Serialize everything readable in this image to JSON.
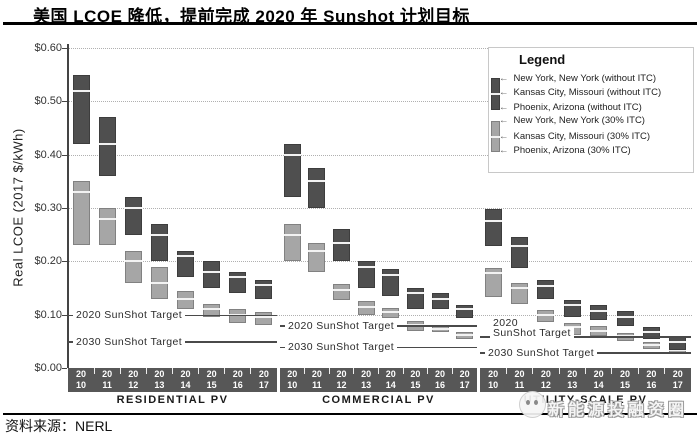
{
  "header": {
    "title": "美国 LCOE 降低，提前完成 2020 年 Sunshot 计划目标"
  },
  "footer": {
    "source": "资料来源：NERL",
    "watermark": "新能源投融资圈"
  },
  "legend": {
    "title": "Legend",
    "items": [
      "New York, New York (without ITC)",
      "Kansas City, Missouri (without ITC)",
      "Phoenix, Arizona (without ITC)",
      "New York, New York (30% ITC)",
      "Kansas City, Missouri (30% ITC)",
      "Phoenix, Arizona (30% ITC)"
    ]
  },
  "chart_data": {
    "type": "bar",
    "subtype": "floating-range-bars",
    "title": "美国 LCOE 降低，提前完成 2020 年 Sunshot 计划目标",
    "ylabel": "Real LCOE (2017 $/kWh)",
    "ylim": [
      0,
      0.6
    ],
    "ytick_step": 0.1,
    "ytick_labels": [
      "$0.00",
      "$0.10",
      "$0.20",
      "$0.30",
      "$0.40",
      "$0.50",
      "$0.60"
    ],
    "grid": "dotted horizontal",
    "legend_position": "top-right",
    "years": [
      "2010",
      "2011",
      "2012",
      "2013",
      "2014",
      "2015",
      "2016",
      "2017"
    ],
    "range_semantics": {
      "bar_top": "New York, New York (high)",
      "bar_mid_line": "Kansas City, Missouri",
      "bar_bottom": "Phoenix, Arizona (low)"
    },
    "colors": {
      "without_itc": "#4f4f4f",
      "itc30": "#a6a6a6",
      "mid_line": "#f2f2f2",
      "axis_band": "#575757"
    },
    "groups": [
      {
        "label": "RESIDENTIAL PV",
        "targets": [
          {
            "label": "2020 SunShot Target",
            "value": 0.1
          },
          {
            "label": "2030 SunShot Target",
            "value": 0.05
          }
        ],
        "without_itc": [
          [
            0.42,
            0.52,
            0.55
          ],
          [
            0.36,
            0.42,
            0.47
          ],
          [
            0.25,
            0.3,
            0.32
          ],
          [
            0.2,
            0.25,
            0.27
          ],
          [
            0.17,
            0.21,
            0.22
          ],
          [
            0.15,
            0.18,
            0.2
          ],
          [
            0.14,
            0.17,
            0.18
          ],
          [
            0.13,
            0.155,
            0.165
          ]
        ],
        "itc30": [
          [
            0.23,
            0.33,
            0.35
          ],
          [
            0.23,
            0.28,
            0.3
          ],
          [
            0.16,
            0.2,
            0.22
          ],
          [
            0.13,
            0.16,
            0.19
          ],
          [
            0.11,
            0.13,
            0.145
          ],
          [
            0.095,
            0.11,
            0.12
          ],
          [
            0.085,
            0.1,
            0.11
          ],
          [
            0.08,
            0.095,
            0.105
          ]
        ]
      },
      {
        "label": "COMMERCIAL PV",
        "targets": [
          {
            "label": "2020 SunShot Target",
            "value": 0.08
          },
          {
            "label": "2030 SunShot Target",
            "value": 0.04
          }
        ],
        "without_itc": [
          [
            0.32,
            0.4,
            0.42
          ],
          [
            0.3,
            0.35,
            0.375
          ],
          [
            0.2,
            0.235,
            0.26
          ],
          [
            0.15,
            0.19,
            0.2
          ],
          [
            0.135,
            0.175,
            0.185
          ],
          [
            0.11,
            0.14,
            0.15
          ],
          [
            0.11,
            0.13,
            0.14
          ],
          [
            0.093,
            0.11,
            0.118
          ]
        ],
        "itc30": [
          [
            0.2,
            0.25,
            0.27
          ],
          [
            0.18,
            0.22,
            0.235
          ],
          [
            0.127,
            0.147,
            0.157
          ],
          [
            0.1,
            0.115,
            0.125
          ],
          [
            0.093,
            0.105,
            0.112
          ],
          [
            0.069,
            0.08,
            0.088
          ],
          [
            0.067,
            0.073,
            0.079
          ],
          [
            0.055,
            0.062,
            0.068
          ]
        ]
      },
      {
        "label": "UTILITY-SCALE PV",
        "targets": [
          {
            "label": "2020 SunShot Target",
            "label_lines": [
              "2020",
              "SunShot Target"
            ],
            "value": 0.06
          },
          {
            "label": "2030 SunShot Target",
            "value": 0.03
          }
        ],
        "without_itc": [
          [
            0.228,
            0.275,
            0.298
          ],
          [
            0.187,
            0.228,
            0.245
          ],
          [
            0.129,
            0.154,
            0.165
          ],
          [
            0.096,
            0.118,
            0.128
          ],
          [
            0.09,
            0.107,
            0.118
          ],
          [
            0.079,
            0.095,
            0.106
          ],
          [
            0.055,
            0.068,
            0.076
          ],
          [
            0.034,
            0.048,
            0.058
          ]
        ],
        "itc30": [
          [
            0.134,
            0.178,
            0.187
          ],
          [
            0.12,
            0.15,
            0.16
          ],
          [
            0.087,
            0.1,
            0.108
          ],
          [
            0.062,
            0.076,
            0.085
          ],
          [
            0.06,
            0.07,
            0.078
          ],
          [
            0.051,
            0.06,
            0.066
          ],
          [
            0.035,
            0.043,
            0.048
          ],
          [
            0.026,
            0.033,
            0.04
          ]
        ]
      }
    ]
  }
}
